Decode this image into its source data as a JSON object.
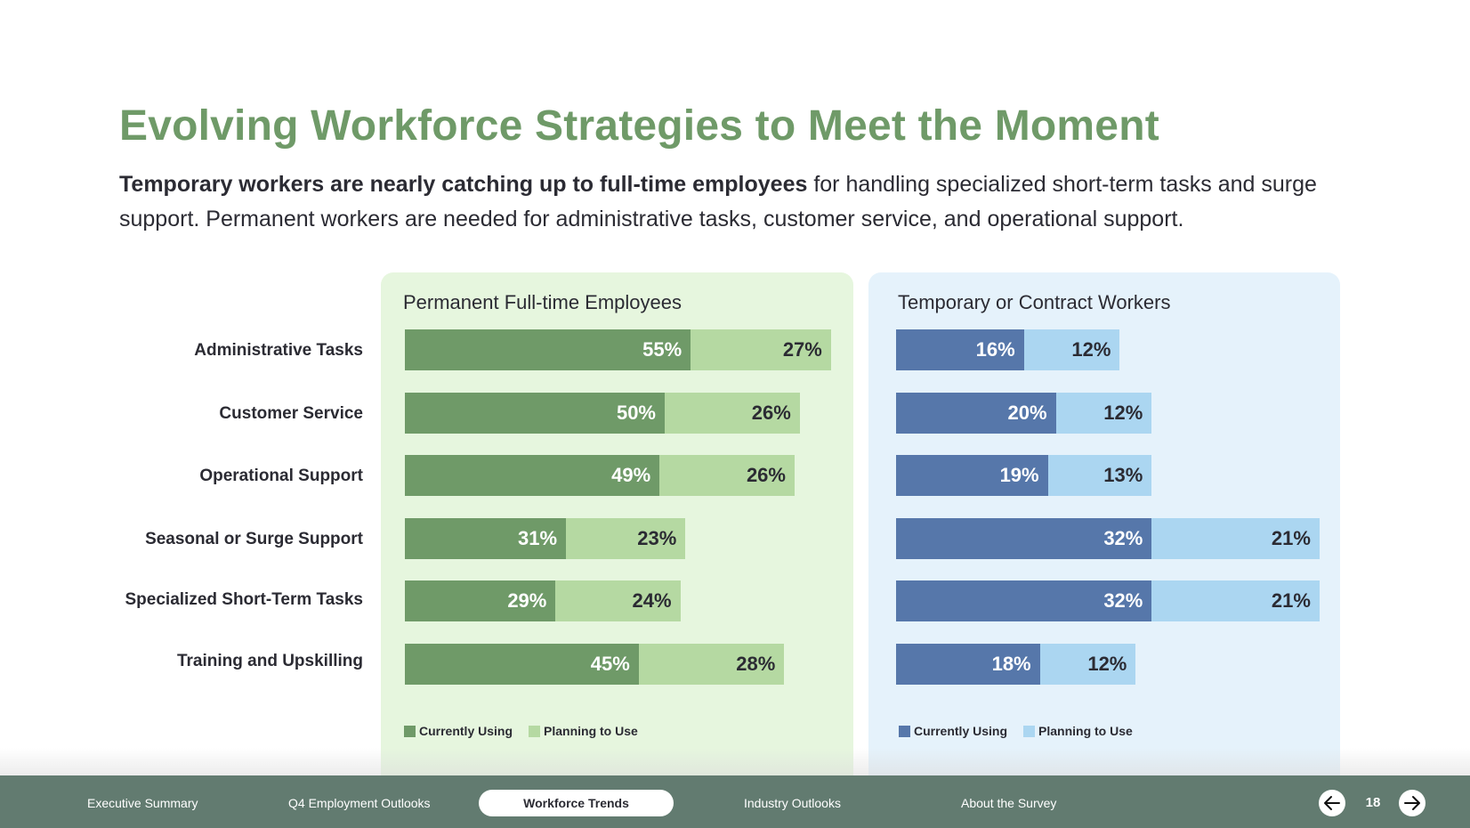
{
  "header": {
    "title": "Evolving Workforce Strategies to Meet the Moment",
    "subtitle_bold": "Temporary workers are nearly catching up to full-time employees",
    "subtitle_rest": " for handling specialized short-term tasks and surge support. Permanent workers are needed for administrative tasks, customer service, and operational support."
  },
  "colors": {
    "title": "#6f9a68",
    "green_current": "#6f9a68",
    "green_planning": "#b5d9a2",
    "green_panel": "#e6f6de",
    "blue_current": "#5677aa",
    "blue_planning": "#abd6f1",
    "blue_panel": "#e5f2fb",
    "nav_bg": "#627b70"
  },
  "categories": [
    "Administrative Tasks",
    "Customer Service",
    "Operational Support",
    "Seasonal or Surge Support",
    "Specialized Short-Term Tasks",
    "Training and Upskilling"
  ],
  "panels": {
    "permanent": {
      "title": "Permanent Full-time Employees",
      "legend": [
        "Currently Using",
        "Planning to Use"
      ]
    },
    "temporary": {
      "title": "Temporary or Contract Workers",
      "legend": [
        "Currently Using",
        "Planning to Use"
      ]
    }
  },
  "chart_data": [
    {
      "type": "bar",
      "orientation": "horizontal",
      "stacked": true,
      "title": "Permanent Full-time Employees",
      "categories": [
        "Administrative Tasks",
        "Customer Service",
        "Operational Support",
        "Seasonal or Surge Support",
        "Specialized Short-Term Tasks",
        "Training and Upskilling"
      ],
      "series": [
        {
          "name": "Currently Using",
          "values": [
            55,
            50,
            49,
            31,
            29,
            45
          ],
          "labels": [
            "55%",
            "50%",
            "49%",
            "31%",
            "29%",
            "45%"
          ],
          "color": "#6f9a68"
        },
        {
          "name": "Planning to Use",
          "values": [
            27,
            26,
            26,
            23,
            24,
            28
          ],
          "labels": [
            "27%",
            "26%",
            "26%",
            "23%",
            "24%",
            "28%"
          ],
          "color": "#b5d9a2"
        }
      ],
      "xlabel": "",
      "ylabel": "",
      "grid": false,
      "legend_position": "bottom-left",
      "unit": "%"
    },
    {
      "type": "bar",
      "orientation": "horizontal",
      "stacked": true,
      "title": "Temporary or Contract Workers",
      "categories": [
        "Administrative Tasks",
        "Customer Service",
        "Operational Support",
        "Seasonal or Surge Support",
        "Specialized Short-Term Tasks",
        "Training and Upskilling"
      ],
      "series": [
        {
          "name": "Currently Using",
          "values": [
            16,
            20,
            19,
            32,
            32,
            18
          ],
          "labels": [
            "16%",
            "20%",
            "19%",
            "32%",
            "32%",
            "18%"
          ],
          "color": "#5677aa"
        },
        {
          "name": "Planning to Use",
          "values": [
            12,
            12,
            13,
            21,
            21,
            12
          ],
          "labels": [
            "12%",
            "12%",
            "13%",
            "21%",
            "21%",
            "12%"
          ],
          "color": "#abd6f1"
        }
      ],
      "xlabel": "",
      "ylabel": "",
      "grid": false,
      "legend_position": "bottom-left",
      "unit": "%"
    }
  ],
  "nav": {
    "items": [
      {
        "label": "Executive Summary",
        "active": false
      },
      {
        "label": "Q4 Employment Outlooks",
        "active": false
      },
      {
        "label": "Workforce Trends",
        "active": true
      },
      {
        "label": "Industry Outlooks",
        "active": false
      },
      {
        "label": "About the Survey",
        "active": false
      }
    ],
    "page_number": "18",
    "prev_icon": "arrow-left-icon",
    "next_icon": "arrow-right-icon"
  }
}
